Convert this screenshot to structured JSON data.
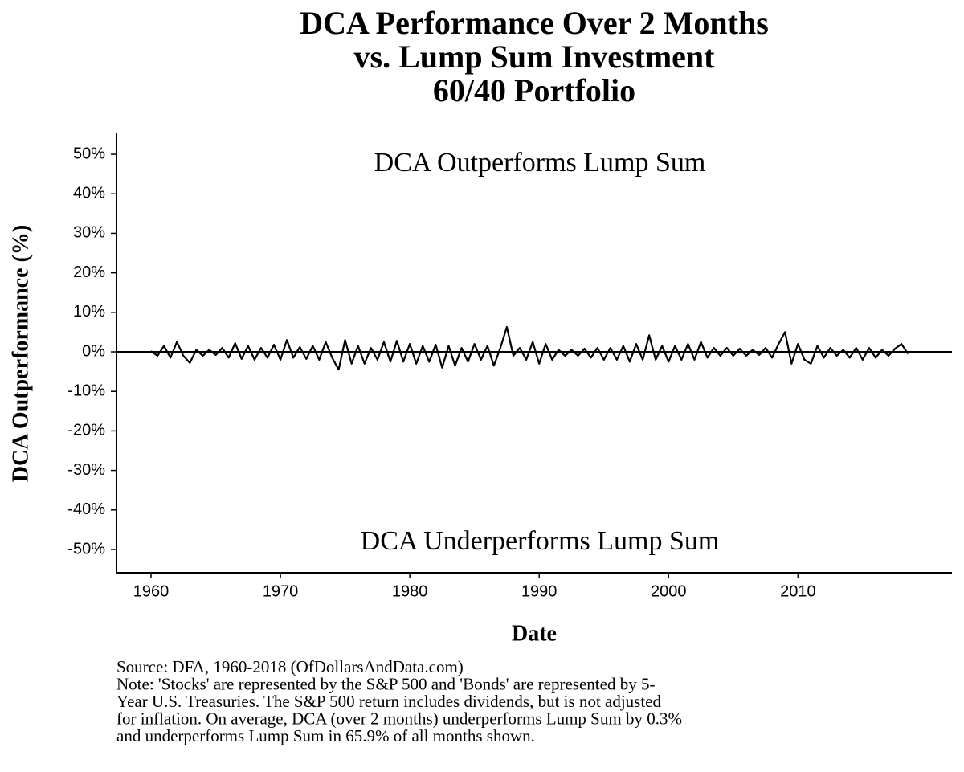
{
  "chart_data": {
    "type": "line",
    "title": [
      "DCA Performance Over 2 Months",
      "vs. Lump Sum Investment",
      "60/40 Portfolio"
    ],
    "x_label": "Date",
    "y_label": "DCA Outperformance (%)",
    "annotations": [
      "DCA Outperforms Lump Sum",
      "DCA Underperforms Lump Sum"
    ],
    "caption": [
      "Source:  DFA, 1960-2018 (OfDollarsAndData.com)",
      "Note: 'Stocks' are represented by the S&P 500 and 'Bonds' are represented by 5-",
      "Year U.S. Treasuries. The S&P 500 return includes dividends, but is not adjusted",
      "for inflation. On average, DCA (over 2 months) underperforms Lump Sum by 0.3%",
      "and underperforms Lump Sum in 65.9% of all months shown."
    ],
    "x": [
      1960,
      1960.5,
      1961,
      1961.5,
      1962,
      1962.5,
      1963,
      1963.5,
      1964,
      1964.5,
      1965,
      1965.5,
      1966,
      1966.5,
      1967,
      1967.5,
      1968,
      1968.5,
      1969,
      1969.5,
      1970,
      1970.5,
      1971,
      1971.5,
      1972,
      1972.5,
      1973,
      1973.5,
      1974,
      1974.5,
      1975,
      1975.5,
      1976,
      1976.5,
      1977,
      1977.5,
      1978,
      1978.5,
      1979,
      1979.5,
      1980,
      1980.5,
      1981,
      1981.5,
      1982,
      1982.5,
      1983,
      1983.5,
      1984,
      1984.5,
      1985,
      1985.5,
      1986,
      1986.5,
      1987,
      1987.5,
      1988,
      1988.5,
      1989,
      1989.5,
      1990,
      1990.5,
      1991,
      1991.5,
      1992,
      1992.5,
      1993,
      1993.5,
      1994,
      1994.5,
      1995,
      1995.5,
      1996,
      1996.5,
      1997,
      1997.5,
      1998,
      1998.5,
      1999,
      1999.5,
      2000,
      2000.5,
      2001,
      2001.5,
      2002,
      2002.5,
      2003,
      2003.5,
      2004,
      2004.5,
      2005,
      2005.5,
      2006,
      2006.5,
      2007,
      2007.5,
      2008,
      2008.5,
      2009,
      2009.5,
      2010,
      2010.5,
      2011,
      2011.5,
      2012,
      2012.5,
      2013,
      2013.5,
      2014,
      2014.5,
      2015,
      2015.5,
      2016,
      2016.5,
      2017,
      2017.5,
      2018,
      2018.5
    ],
    "series": [
      {
        "name": "DCA Outperformance",
        "color": "#000000",
        "values": [
          0.2,
          -1,
          1.5,
          -1.5,
          2.5,
          -1,
          -2.8,
          0.5,
          -1,
          0.5,
          -0.8,
          1,
          -1.5,
          2.2,
          -1.8,
          1.5,
          -2,
          1,
          -1.5,
          1.8,
          -2,
          3,
          -1.5,
          1.2,
          -1.8,
          1.5,
          -2,
          2.5,
          -1.5,
          -4.5,
          3,
          -3,
          1.5,
          -3,
          1,
          -2,
          2.5,
          -2.5,
          2.8,
          -2.5,
          2,
          -3,
          1.5,
          -2.5,
          1.8,
          -4,
          1.5,
          -3.5,
          1,
          -2.5,
          2,
          -2,
          1.5,
          -3.5,
          1,
          6.3,
          -1,
          1,
          -2,
          2.5,
          -3,
          2,
          -2,
          0.5,
          -1,
          0.5,
          -1,
          0.8,
          -1.5,
          1,
          -2,
          1,
          -2,
          1.5,
          -2.5,
          2,
          -2,
          4.2,
          -2,
          1.5,
          -2.5,
          1.5,
          -2,
          2,
          -2,
          2.5,
          -1.5,
          1,
          -1,
          1,
          -1,
          0.8,
          -1,
          0.5,
          -0.8,
          1,
          -1.5,
          2,
          5,
          -3,
          2,
          -2,
          -3,
          1.5,
          -1.5,
          1,
          -1,
          0.5,
          -1.5,
          1,
          -2,
          1,
          -1.5,
          0.5,
          -1,
          0.8,
          2,
          -0.5
        ]
      }
    ],
    "xlim": [
      1957.33,
      2021.9
    ],
    "xticks": [
      1960,
      1970,
      1980,
      1990,
      2000,
      2010
    ],
    "ylim": [
      -55.9,
      55.5
    ],
    "yticks": [
      {
        "value": 50,
        "label": "50%"
      },
      {
        "value": 40,
        "label": "40%"
      },
      {
        "value": 30,
        "label": "30%"
      },
      {
        "value": 20,
        "label": "20%"
      },
      {
        "value": 10,
        "label": "10%"
      },
      {
        "value": 0,
        "label": "0%"
      },
      {
        "value": -10,
        "label": "-10%"
      },
      {
        "value": -20,
        "label": "-20%"
      },
      {
        "value": -30,
        "label": "-30%"
      },
      {
        "value": -40,
        "label": "-40%"
      },
      {
        "value": -50,
        "label": "-50%"
      }
    ],
    "hline": 0,
    "grid": false
  }
}
